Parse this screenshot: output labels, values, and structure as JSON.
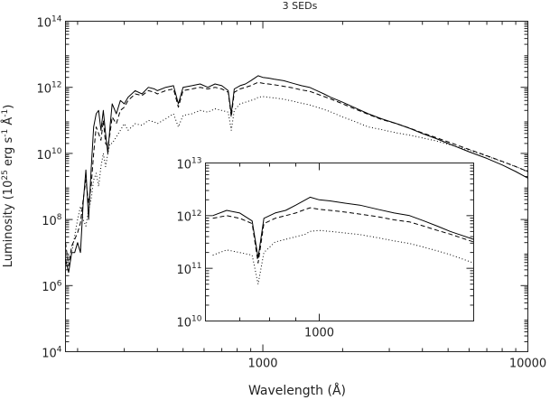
{
  "chart_data": {
    "type": "line",
    "title": "3 SEDs",
    "xlabel": "Wavelength (Å)",
    "ylabel_parts": {
      "pre": "Luminosity (10",
      "exp1": "25",
      "mid": " erg s",
      "exp2": "-1",
      "mid2": " Å",
      "exp3": "-1",
      "post": ")"
    },
    "x_scale": "log",
    "y_scale": "log",
    "xlim": [
      180,
      10000
    ],
    "ylim_log10": [
      4,
      14
    ],
    "x_ticks": [
      {
        "value": 1000,
        "label": "1000"
      },
      {
        "value": 10000,
        "label": "10000"
      }
    ],
    "y_ticks": [
      {
        "exp": 4,
        "base": "10",
        "sup": "4"
      },
      {
        "exp": 6,
        "base": "10",
        "sup": "6"
      },
      {
        "exp": 8,
        "base": "10",
        "sup": "8"
      },
      {
        "exp": 10,
        "base": "10",
        "sup": "10"
      },
      {
        "exp": 12,
        "base": "10",
        "sup": "12"
      },
      {
        "exp": 14,
        "base": "10",
        "sup": "14"
      }
    ],
    "series": [
      {
        "style": "solid",
        "points": [
          [
            180,
            6.8
          ],
          [
            185,
            6.4
          ],
          [
            190,
            7.0
          ],
          [
            195,
            7.0
          ],
          [
            200,
            7.3
          ],
          [
            205,
            7.0
          ],
          [
            210,
            8.5
          ],
          [
            215,
            9.5
          ],
          [
            220,
            8.0
          ],
          [
            225,
            9.5
          ],
          [
            230,
            10.8
          ],
          [
            235,
            11.2
          ],
          [
            240,
            11.3
          ],
          [
            245,
            10.7
          ],
          [
            250,
            11.3
          ],
          [
            255,
            10.6
          ],
          [
            260,
            10.0
          ],
          [
            265,
            10.8
          ],
          [
            270,
            11.5
          ],
          [
            280,
            11.2
          ],
          [
            290,
            11.6
          ],
          [
            300,
            11.5
          ],
          [
            310,
            11.7
          ],
          [
            330,
            11.9
          ],
          [
            350,
            11.8
          ],
          [
            370,
            12.0
          ],
          [
            390,
            11.95
          ],
          [
            400,
            11.9
          ],
          [
            430,
            12.0
          ],
          [
            460,
            12.05
          ],
          [
            480,
            11.5
          ],
          [
            500,
            12.0
          ],
          [
            540,
            12.05
          ],
          [
            580,
            12.1
          ],
          [
            620,
            12.0
          ],
          [
            660,
            12.1
          ],
          [
            700,
            12.05
          ],
          [
            740,
            11.9
          ],
          [
            760,
            11.2
          ],
          [
            780,
            11.95
          ],
          [
            820,
            12.05
          ],
          [
            860,
            12.1
          ],
          [
            900,
            12.2
          ],
          [
            940,
            12.3
          ],
          [
            960,
            12.35
          ],
          [
            1000,
            12.3
          ],
          [
            1050,
            12.28
          ],
          [
            1100,
            12.25
          ],
          [
            1200,
            12.2
          ],
          [
            1300,
            12.12
          ],
          [
            1400,
            12.05
          ],
          [
            1500,
            12.0
          ],
          [
            1600,
            11.9
          ],
          [
            1700,
            11.8
          ],
          [
            1800,
            11.7
          ],
          [
            2000,
            11.55
          ],
          [
            2200,
            11.4
          ],
          [
            2500,
            11.2
          ],
          [
            2800,
            11.05
          ],
          [
            3200,
            10.9
          ],
          [
            3600,
            10.75
          ],
          [
            4000,
            10.6
          ],
          [
            4500,
            10.45
          ],
          [
            5000,
            10.3
          ],
          [
            6000,
            10.05
          ],
          [
            7000,
            9.85
          ],
          [
            8000,
            9.65
          ],
          [
            9000,
            9.45
          ],
          [
            10000,
            9.25
          ]
        ]
      },
      {
        "style": "dashed",
        "points": [
          [
            180,
            7.3
          ],
          [
            185,
            6.6
          ],
          [
            190,
            7.2
          ],
          [
            195,
            7.4
          ],
          [
            200,
            7.6
          ],
          [
            205,
            7.9
          ],
          [
            210,
            8.6
          ],
          [
            215,
            9.2
          ],
          [
            220,
            8.5
          ],
          [
            225,
            9.0
          ],
          [
            230,
            10.0
          ],
          [
            235,
            10.8
          ],
          [
            240,
            10.6
          ],
          [
            245,
            10.4
          ],
          [
            250,
            11.0
          ],
          [
            255,
            10.3
          ],
          [
            260,
            10.2
          ],
          [
            265,
            10.6
          ],
          [
            270,
            11.1
          ],
          [
            280,
            10.9
          ],
          [
            290,
            11.3
          ],
          [
            300,
            11.4
          ],
          [
            310,
            11.6
          ],
          [
            330,
            11.8
          ],
          [
            350,
            11.75
          ],
          [
            370,
            11.9
          ],
          [
            390,
            11.85
          ],
          [
            400,
            11.8
          ],
          [
            430,
            11.9
          ],
          [
            460,
            11.95
          ],
          [
            480,
            11.4
          ],
          [
            500,
            11.9
          ],
          [
            540,
            11.95
          ],
          [
            580,
            12.0
          ],
          [
            620,
            11.95
          ],
          [
            660,
            12.0
          ],
          [
            700,
            11.95
          ],
          [
            740,
            11.85
          ],
          [
            760,
            11.1
          ],
          [
            780,
            11.85
          ],
          [
            820,
            11.95
          ],
          [
            860,
            12.0
          ],
          [
            900,
            12.05
          ],
          [
            940,
            12.12
          ],
          [
            960,
            12.15
          ],
          [
            1000,
            12.12
          ],
          [
            1050,
            12.1
          ],
          [
            1100,
            12.08
          ],
          [
            1200,
            12.03
          ],
          [
            1300,
            11.98
          ],
          [
            1400,
            11.92
          ],
          [
            1500,
            11.88
          ],
          [
            1600,
            11.8
          ],
          [
            1700,
            11.72
          ],
          [
            1800,
            11.65
          ],
          [
            2000,
            11.5
          ],
          [
            2200,
            11.36
          ],
          [
            2500,
            11.18
          ],
          [
            2800,
            11.03
          ],
          [
            3200,
            10.9
          ],
          [
            3600,
            10.76
          ],
          [
            4000,
            10.62
          ],
          [
            4500,
            10.48
          ],
          [
            5000,
            10.35
          ],
          [
            6000,
            10.12
          ],
          [
            7000,
            9.93
          ],
          [
            8000,
            9.76
          ],
          [
            9000,
            9.6
          ],
          [
            10000,
            9.45
          ]
        ]
      },
      {
        "style": "dotted",
        "points": [
          [
            180,
            6.7
          ],
          [
            185,
            6.4
          ],
          [
            190,
            7.0
          ],
          [
            195,
            7.5
          ],
          [
            200,
            8.0
          ],
          [
            205,
            8.4
          ],
          [
            210,
            8.0
          ],
          [
            215,
            7.8
          ],
          [
            220,
            8.3
          ],
          [
            225,
            8.6
          ],
          [
            230,
            9.2
          ],
          [
            235,
            9.4
          ],
          [
            240,
            9.0
          ],
          [
            245,
            9.6
          ],
          [
            250,
            10.0
          ],
          [
            255,
            9.6
          ],
          [
            260,
            10.0
          ],
          [
            265,
            10.3
          ],
          [
            270,
            10.3
          ],
          [
            280,
            10.5
          ],
          [
            290,
            10.7
          ],
          [
            300,
            10.9
          ],
          [
            310,
            10.7
          ],
          [
            330,
            10.9
          ],
          [
            350,
            10.85
          ],
          [
            370,
            11.0
          ],
          [
            390,
            10.95
          ],
          [
            400,
            10.9
          ],
          [
            430,
            11.05
          ],
          [
            460,
            11.2
          ],
          [
            480,
            10.8
          ],
          [
            500,
            11.15
          ],
          [
            540,
            11.2
          ],
          [
            580,
            11.3
          ],
          [
            620,
            11.25
          ],
          [
            660,
            11.35
          ],
          [
            700,
            11.3
          ],
          [
            740,
            11.25
          ],
          [
            760,
            10.7
          ],
          [
            780,
            11.3
          ],
          [
            820,
            11.5
          ],
          [
            860,
            11.55
          ],
          [
            900,
            11.6
          ],
          [
            940,
            11.65
          ],
          [
            960,
            11.7
          ],
          [
            1000,
            11.72
          ],
          [
            1050,
            11.7
          ],
          [
            1100,
            11.68
          ],
          [
            1200,
            11.64
          ],
          [
            1300,
            11.58
          ],
          [
            1400,
            11.52
          ],
          [
            1500,
            11.47
          ],
          [
            1600,
            11.4
          ],
          [
            1700,
            11.33
          ],
          [
            1800,
            11.26
          ],
          [
            2000,
            11.1
          ],
          [
            2200,
            10.98
          ],
          [
            2500,
            10.8
          ],
          [
            2800,
            10.72
          ],
          [
            3200,
            10.62
          ],
          [
            3600,
            10.55
          ],
          [
            4000,
            10.47
          ],
          [
            4500,
            10.38
          ],
          [
            5000,
            10.28
          ],
          [
            6000,
            10.1
          ],
          [
            7000,
            9.92
          ],
          [
            8000,
            9.75
          ],
          [
            9000,
            9.6
          ],
          [
            10000,
            9.45
          ]
        ]
      }
    ],
    "inset": {
      "x_scale": "log",
      "y_scale": "log",
      "xlim": [
        600,
        2000
      ],
      "ylim_log10": [
        10,
        13
      ],
      "x_ticks": [
        {
          "value": 1000,
          "label": "1000"
        }
      ],
      "y_ticks": [
        {
          "exp": 10,
          "base": "10",
          "sup": "10"
        },
        {
          "exp": 11,
          "base": "10",
          "sup": "11"
        },
        {
          "exp": 12,
          "base": "10",
          "sup": "12"
        },
        {
          "exp": 13,
          "base": "10",
          "sup": "13"
        }
      ]
    }
  }
}
